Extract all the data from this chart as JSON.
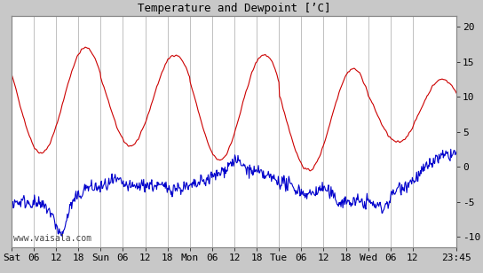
{
  "title": "Temperature and Dewpoint [’C]",
  "ylabel_right_ticks": [
    -10,
    -5,
    0,
    5,
    10,
    15,
    20
  ],
  "ylim": [
    -11.5,
    21.5
  ],
  "background_color": "#c8c8c8",
  "plot_bg_color": "#ffffff",
  "grid_color": "#c0c0c0",
  "temp_color": "#cc0000",
  "dew_color": "#0000cc",
  "line_width": 0.8,
  "watermark": "www.vaisala.com",
  "xtick_labels": [
    "Sat",
    "06",
    "12",
    "18",
    "Sun",
    "06",
    "12",
    "18",
    "Mon",
    "06",
    "12",
    "18",
    "Tue",
    "06",
    "12",
    "18",
    "Wed",
    "06",
    "12",
    "23:45"
  ],
  "xtick_positions": [
    0,
    6,
    12,
    18,
    24,
    30,
    36,
    42,
    48,
    54,
    60,
    66,
    72,
    78,
    84,
    90,
    96,
    102,
    108,
    119.75
  ],
  "total_hours": 119.75
}
